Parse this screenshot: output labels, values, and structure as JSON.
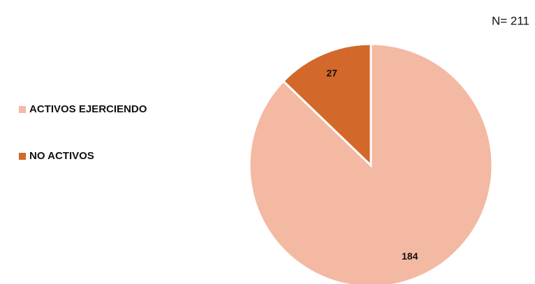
{
  "chart_data": {
    "type": "pie",
    "annotation": "N= 211",
    "categories": [
      "ACTIVOS EJERCIENDO",
      "NO ACTIVOS"
    ],
    "values": [
      184,
      27
    ],
    "colors": [
      "#f4b9a3",
      "#d2692a"
    ],
    "legend": "left"
  }
}
